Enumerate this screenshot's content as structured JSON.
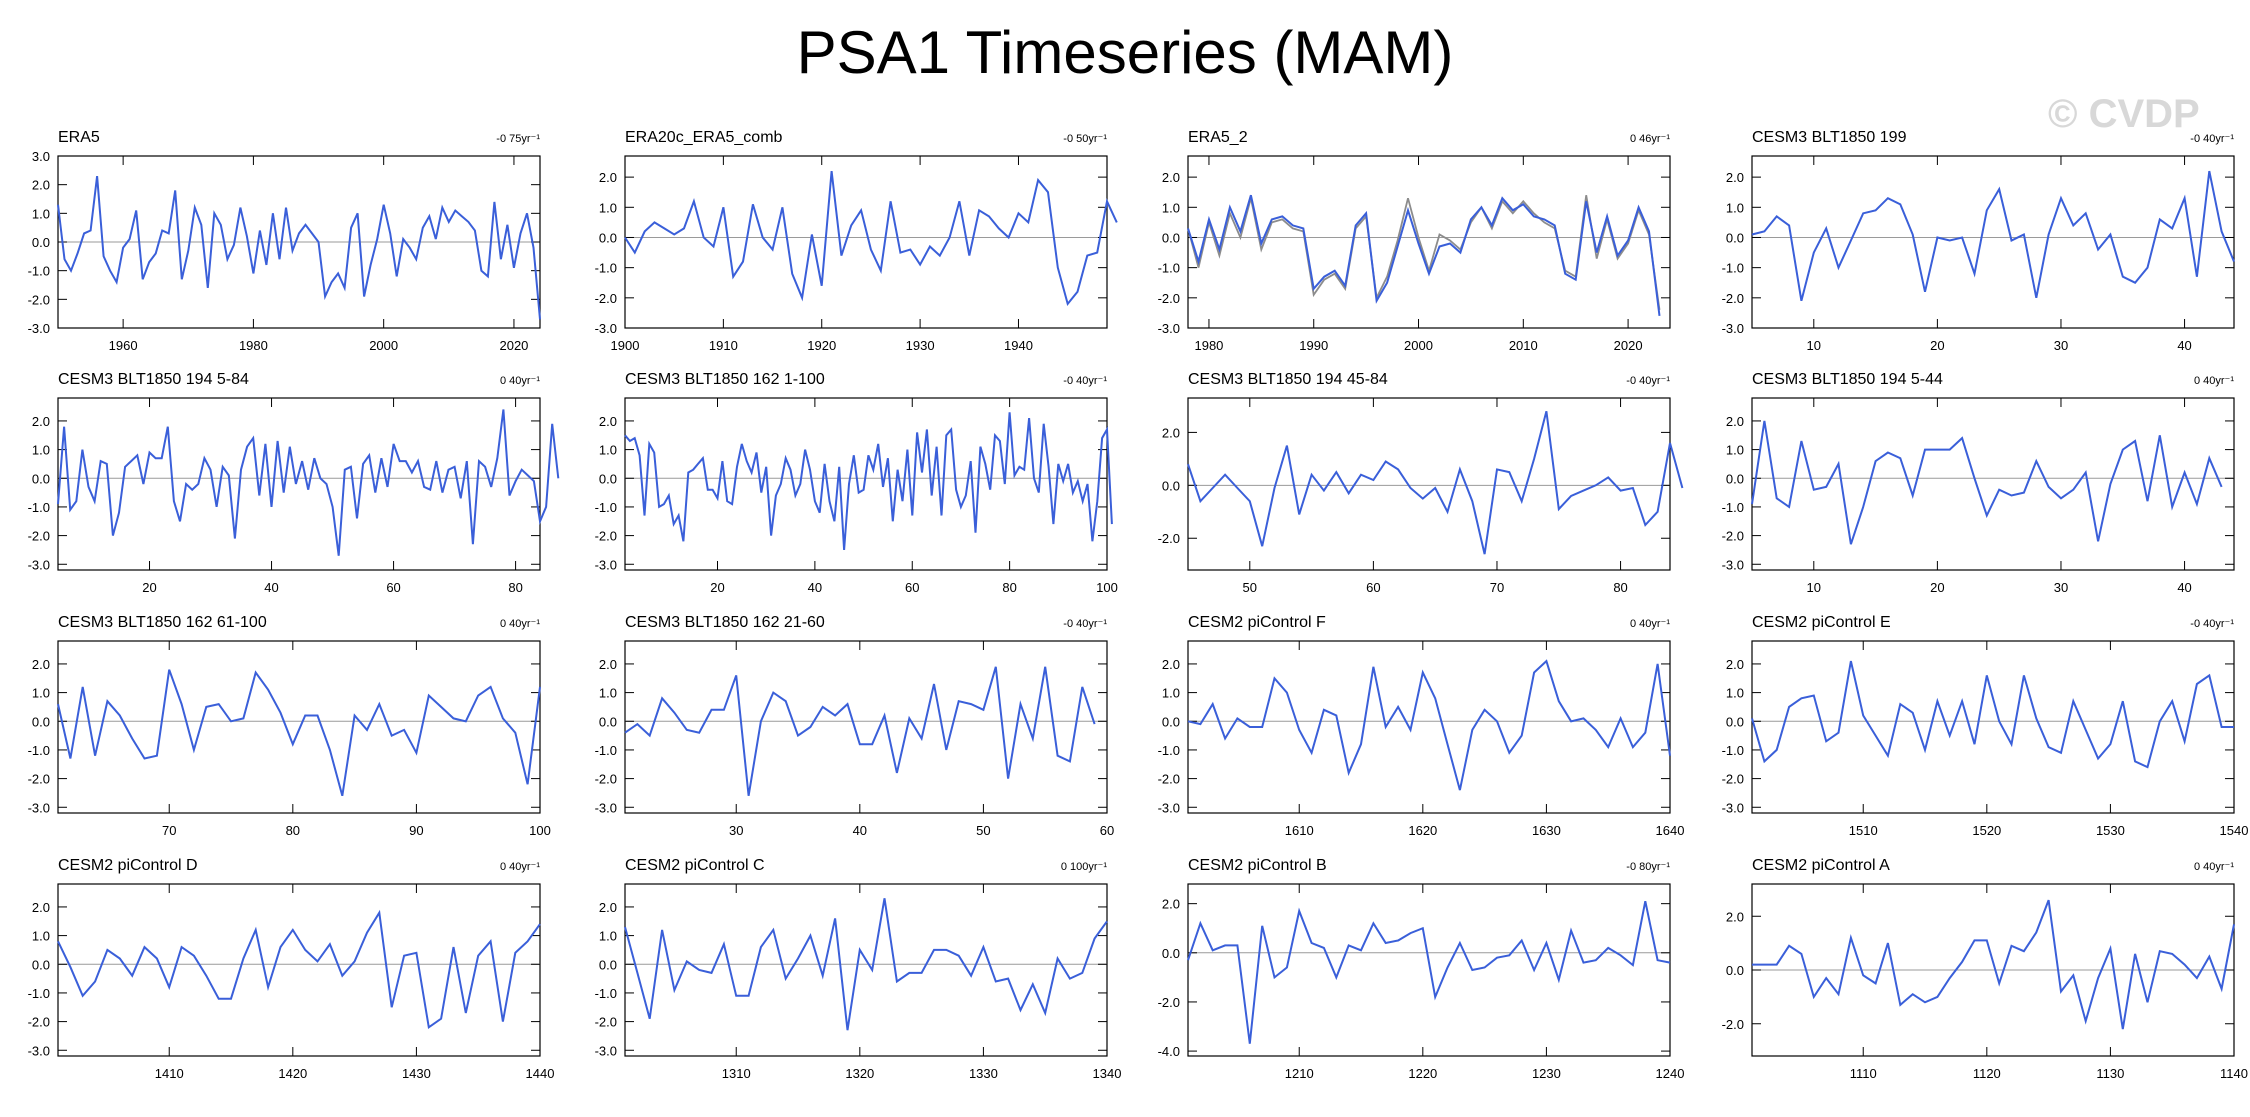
{
  "title": "PSA1 Timeseries (MAM)",
  "watermark": "© CVDP",
  "colors": {
    "series": "#3a5fd9",
    "obs_overlay": "#8c8c8c",
    "zero_line": "#9a9a9a",
    "frame": "#000000"
  },
  "chart_data": [
    {
      "type": "line",
      "title": "ERA5",
      "trend": "-0 75yr⁻¹",
      "xlim": [
        1950,
        2024
      ],
      "ylim": [
        -3,
        3
      ],
      "xticks": [
        1960,
        1980,
        2000,
        2020
      ],
      "yticks": [
        -3.0,
        -2.0,
        -1.0,
        0.0,
        1.0,
        2.0,
        3.0
      ],
      "x_start": 1950,
      "values": [
        1.3,
        -0.6,
        -1.0,
        -0.4,
        0.3,
        0.4,
        2.3,
        -0.5,
        -1.0,
        -1.4,
        -0.2,
        0.1,
        1.1,
        -1.3,
        -0.7,
        -0.4,
        0.4,
        0.3,
        1.8,
        -1.3,
        -0.3,
        1.2,
        0.6,
        -1.6,
        1.0,
        0.6,
        -0.6,
        -0.1,
        1.2,
        0.2,
        -1.1,
        0.4,
        -0.8,
        1.0,
        -0.6,
        1.2,
        -0.3,
        0.3,
        0.6,
        0.3,
        0.0,
        -1.9,
        -1.4,
        -1.1,
        -1.6,
        0.5,
        1.0,
        -1.9,
        -0.8,
        0.1,
        1.3,
        0.3,
        -1.2,
        0.1,
        -0.2,
        -0.6,
        0.5,
        0.9,
        0.1,
        1.2,
        0.7,
        1.1,
        0.9,
        0.7,
        0.4,
        -1.0,
        -1.2,
        1.4,
        -0.6,
        0.6,
        -0.9,
        0.3,
        1.0,
        -0.2,
        -2.7
      ]
    },
    {
      "type": "line",
      "title": "ERA20c_ERA5_comb",
      "trend": "-0 50yr⁻¹",
      "xlim": [
        1900,
        1949
      ],
      "ylim": [
        -3,
        2.7
      ],
      "xticks": [
        1900,
        1910,
        1920,
        1930,
        1940
      ],
      "yticks": [
        -3.0,
        -2.0,
        -1.0,
        0.0,
        1.0,
        2.0
      ],
      "x_start": 1900,
      "values": [
        0.0,
        -0.5,
        0.2,
        0.5,
        0.3,
        0.1,
        0.3,
        1.2,
        0.0,
        -0.3,
        1.0,
        -1.3,
        -0.8,
        1.1,
        0.0,
        -0.4,
        1.0,
        -1.2,
        -2.0,
        0.1,
        -1.6,
        2.2,
        -0.6,
        0.4,
        0.9,
        -0.4,
        -1.1,
        1.2,
        -0.5,
        -0.4,
        -0.9,
        -0.3,
        -0.6,
        0.0,
        1.2,
        -0.6,
        0.9,
        0.7,
        0.3,
        0.0,
        0.8,
        0.5,
        1.9,
        1.5,
        -1.0,
        -2.2,
        -1.8,
        -0.6,
        -0.5,
        1.2,
        0.5
      ]
    },
    {
      "type": "line",
      "title": "ERA5_2",
      "trend": "0 46yr⁻¹",
      "xlim": [
        1978,
        2024
      ],
      "ylim": [
        -3,
        2.7
      ],
      "xticks": [
        1980,
        1990,
        2000,
        2010,
        2020
      ],
      "yticks": [
        -3.0,
        -2.0,
        -1.0,
        0.0,
        1.0,
        2.0
      ],
      "x_start": 1978,
      "values": [
        0.3,
        -0.8,
        0.6,
        -0.4,
        1.0,
        0.2,
        1.4,
        -0.2,
        0.6,
        0.7,
        0.4,
        0.3,
        -1.7,
        -1.3,
        -1.1,
        -1.6,
        0.4,
        0.8,
        -2.1,
        -1.5,
        -0.3,
        0.9,
        -0.2,
        -1.2,
        -0.3,
        -0.2,
        -0.5,
        0.6,
        1.0,
        0.4,
        1.3,
        0.9,
        1.1,
        0.7,
        0.6,
        0.4,
        -1.2,
        -1.4,
        1.2,
        -0.5,
        0.7,
        -0.6,
        -0.1,
        1.0,
        0.2,
        -2.6
      ],
      "overlay": [
        0.3,
        -1.0,
        0.5,
        -0.6,
        0.8,
        0.0,
        1.3,
        -0.4,
        0.5,
        0.6,
        0.3,
        0.2,
        -1.9,
        -1.4,
        -1.2,
        -1.7,
        0.3,
        0.7,
        -2.0,
        -1.3,
        -0.1,
        1.3,
        0.0,
        -1.1,
        0.1,
        -0.1,
        -0.4,
        0.5,
        1.0,
        0.3,
        1.2,
        0.8,
        1.2,
        0.8,
        0.5,
        0.3,
        -1.1,
        -1.3,
        1.4,
        -0.7,
        0.6,
        -0.7,
        -0.2,
        0.9,
        0.1,
        -2.4
      ]
    },
    {
      "type": "line",
      "title": "CESM3 BLT1850 199",
      "trend": "-0 40yr⁻¹",
      "xlim": [
        5,
        44
      ],
      "ylim": [
        -3,
        2.7
      ],
      "xticks": [
        10,
        20,
        30,
        40
      ],
      "yticks": [
        -3.0,
        -2.0,
        -1.0,
        0.0,
        1.0,
        2.0
      ],
      "x_start": 5,
      "values": [
        0.1,
        0.2,
        0.7,
        0.4,
        -2.1,
        -0.5,
        0.3,
        -1.0,
        -0.1,
        0.8,
        0.9,
        1.3,
        1.1,
        0.1,
        -1.8,
        0.0,
        -0.1,
        0.0,
        -1.2,
        0.9,
        1.6,
        -0.1,
        0.1,
        -2.0,
        0.1,
        1.3,
        0.4,
        0.8,
        -0.4,
        0.1,
        -1.3,
        -1.5,
        -1.0,
        0.6,
        0.3,
        1.3,
        -1.3,
        2.2,
        0.2,
        -0.8
      ]
    },
    {
      "type": "line",
      "title": "CESM3 BLT1850 194 5-84",
      "trend": "0 40yr⁻¹",
      "xlim": [
        5,
        84
      ],
      "ylim": [
        -3.2,
        2.8
      ],
      "xticks": [
        20,
        40,
        60,
        80
      ],
      "yticks": [
        -3.0,
        -2.0,
        -1.0,
        0.0,
        1.0,
        2.0
      ],
      "x_start": 5,
      "values": [
        -0.9,
        1.8,
        -1.1,
        -0.8,
        1.0,
        -0.3,
        -0.8,
        0.6,
        0.5,
        -2.0,
        -1.2,
        0.4,
        0.6,
        0.8,
        -0.2,
        0.9,
        0.7,
        0.7,
        1.8,
        -0.8,
        -1.5,
        -0.2,
        -0.4,
        -0.2,
        0.7,
        0.3,
        -1.0,
        0.4,
        0.1,
        -2.1,
        0.3,
        1.1,
        1.4,
        -0.6,
        1.2,
        -1.0,
        1.3,
        -0.5,
        1.1,
        -0.2,
        0.6,
        -0.4,
        0.7,
        0.0,
        -0.2,
        -1.0,
        -2.7,
        0.3,
        0.4,
        -1.4,
        0.5,
        0.8,
        -0.5,
        0.7,
        -0.3,
        1.2,
        0.6,
        0.6,
        0.2,
        0.6,
        -0.3,
        -0.4,
        0.6,
        -0.5,
        0.3,
        0.4,
        -0.7,
        0.6,
        -2.3,
        0.6,
        0.4,
        -0.3,
        0.7,
        2.4,
        -0.6,
        -0.1,
        0.3,
        0.1,
        -0.1,
        -1.5,
        -1.0,
        1.9,
        0.0
      ]
    },
    {
      "type": "line",
      "title": "CESM3 BLT1850 162 1-100",
      "trend": "-0 40yr⁻¹",
      "xlim": [
        1,
        100
      ],
      "ylim": [
        -3.2,
        2.8
      ],
      "xticks": [
        20,
        40,
        60,
        80,
        100
      ],
      "yticks": [
        -3.0,
        -2.0,
        -1.0,
        0.0,
        1.0,
        2.0
      ],
      "x_start": 1,
      "values": [
        1.5,
        1.3,
        1.4,
        0.8,
        -1.3,
        1.2,
        0.9,
        -1.0,
        -0.9,
        -0.6,
        -1.6,
        -1.3,
        -2.2,
        0.2,
        0.3,
        0.5,
        0.7,
        -0.4,
        -0.4,
        -0.7,
        0.6,
        -0.8,
        -0.9,
        0.4,
        1.2,
        0.6,
        0.2,
        0.9,
        -0.5,
        0.4,
        -2.0,
        -0.6,
        -0.2,
        0.7,
        0.3,
        -0.6,
        -0.2,
        1.0,
        0.3,
        -0.8,
        -1.2,
        0.5,
        -0.8,
        -1.5,
        0.4,
        -2.5,
        -0.2,
        0.8,
        -0.5,
        -0.4,
        0.8,
        0.3,
        1.2,
        -0.3,
        0.7,
        -1.5,
        0.3,
        -0.8,
        1.0,
        -1.3,
        1.6,
        0.2,
        1.7,
        -0.6,
        1.1,
        -1.3,
        1.5,
        1.7,
        -0.4,
        -1.0,
        -0.6,
        0.6,
        -1.9,
        1.1,
        0.5,
        -0.4,
        1.5,
        1.3,
        -0.2,
        2.3,
        0.1,
        0.4,
        0.3,
        2.1,
        0.0,
        -0.5,
        1.9,
        0.4,
        -1.6,
        0.5,
        -0.1,
        0.5,
        -0.5,
        -0.1,
        -0.8,
        -0.2,
        -2.2,
        -0.8,
        1.4,
        1.7,
        -1.6
      ]
    },
    {
      "type": "line",
      "title": "CESM3 BLT1850 194 45-84",
      "trend": "-0 40yr⁻¹",
      "xlim": [
        45,
        84
      ],
      "ylim": [
        -3.2,
        3.3
      ],
      "xticks": [
        50,
        60,
        70,
        80
      ],
      "yticks": [
        -2.0,
        0.0,
        2.0
      ],
      "x_start": 45,
      "values": [
        0.8,
        -0.6,
        -0.1,
        0.4,
        -0.1,
        -0.6,
        -2.3,
        -0.1,
        1.5,
        -1.1,
        0.4,
        -0.2,
        0.5,
        -0.3,
        0.4,
        0.2,
        0.9,
        0.6,
        -0.1,
        -0.5,
        -0.1,
        -1.0,
        0.6,
        -0.6,
        -2.6,
        0.6,
        0.5,
        -0.6,
        1.0,
        2.8,
        -0.9,
        -0.4,
        -0.2,
        0.0,
        0.3,
        -0.2,
        -0.1,
        -1.5,
        -1.0,
        1.6,
        -0.1
      ]
    },
    {
      "type": "line",
      "title": "CESM3 BLT1850 194 5-44",
      "trend": "0 40yr⁻¹",
      "xlim": [
        5,
        44
      ],
      "ylim": [
        -3.2,
        2.8
      ],
      "xticks": [
        10,
        20,
        30,
        40
      ],
      "yticks": [
        -3.0,
        -2.0,
        -1.0,
        0.0,
        1.0,
        2.0
      ],
      "x_start": 5,
      "values": [
        -0.9,
        2.0,
        -0.7,
        -1.0,
        1.3,
        -0.4,
        -0.3,
        0.5,
        -2.3,
        -1.0,
        0.6,
        0.9,
        0.7,
        -0.6,
        1.0,
        1.0,
        1.0,
        1.4,
        0.0,
        -1.3,
        -0.4,
        -0.6,
        -0.5,
        0.6,
        -0.3,
        -0.7,
        -0.4,
        0.2,
        -2.2,
        -0.2,
        1.0,
        1.3,
        -0.8,
        1.5,
        -1.0,
        0.2,
        -0.9,
        0.7,
        -0.3
      ]
    },
    {
      "type": "line",
      "title": "CESM3 BLT1850 162 61-100",
      "trend": "0 40yr⁻¹",
      "xlim": [
        61,
        100
      ],
      "ylim": [
        -3.2,
        2.8
      ],
      "xticks": [
        70,
        80,
        90,
        100
      ],
      "yticks": [
        -3.0,
        -2.0,
        -1.0,
        0.0,
        1.0,
        2.0
      ],
      "x_start": 61,
      "values": [
        0.6,
        -1.3,
        1.2,
        -1.2,
        0.7,
        0.2,
        -0.6,
        -1.3,
        -1.2,
        1.8,
        0.6,
        -1.0,
        0.5,
        0.6,
        0.0,
        0.1,
        1.7,
        1.1,
        0.3,
        -0.8,
        0.2,
        0.2,
        -1.0,
        -2.6,
        0.2,
        -0.3,
        0.6,
        -0.5,
        -0.3,
        -1.1,
        0.9,
        0.5,
        0.1,
        0.0,
        0.9,
        1.2,
        0.1,
        -0.4,
        -2.2,
        1.2
      ]
    },
    {
      "type": "line",
      "title": "CESM3 BLT1850 162 21-60",
      "trend": "-0 40yr⁻¹",
      "xlim": [
        21,
        60
      ],
      "ylim": [
        -3.2,
        2.8
      ],
      "xticks": [
        30,
        40,
        50,
        60
      ],
      "yticks": [
        -3.0,
        -2.0,
        -1.0,
        0.0,
        1.0,
        2.0
      ],
      "x_start": 21,
      "values": [
        -0.4,
        -0.1,
        -0.5,
        0.8,
        0.3,
        -0.3,
        -0.4,
        0.4,
        0.4,
        1.6,
        -2.6,
        0.0,
        1.0,
        0.7,
        -0.5,
        -0.2,
        0.5,
        0.2,
        0.6,
        -0.8,
        -0.8,
        0.2,
        -1.8,
        0.1,
        -0.6,
        1.3,
        -1.0,
        0.7,
        0.6,
        0.4,
        1.9,
        -2.0,
        0.6,
        -0.6,
        1.9,
        -1.2,
        -1.4,
        1.2,
        -0.1
      ]
    },
    {
      "type": "line",
      "title": "CESM2 piControl F",
      "trend": "0 40yr⁻¹",
      "xlim": [
        1601,
        1640
      ],
      "ylim": [
        -3.2,
        2.8
      ],
      "xticks": [
        1610,
        1620,
        1630,
        1640
      ],
      "yticks": [
        -3.0,
        -2.0,
        -1.0,
        0.0,
        1.0,
        2.0
      ],
      "x_start": 1601,
      "values": [
        0.0,
        -0.1,
        0.6,
        -0.6,
        0.1,
        -0.2,
        -0.2,
        1.5,
        1.0,
        -0.3,
        -1.1,
        0.4,
        0.2,
        -1.8,
        -0.8,
        1.9,
        -0.2,
        0.5,
        -0.3,
        1.7,
        0.8,
        -0.8,
        -2.4,
        -0.3,
        0.4,
        0.0,
        -1.1,
        -0.5,
        1.7,
        2.1,
        0.7,
        0.0,
        0.1,
        -0.3,
        -0.9,
        0.1,
        -0.9,
        -0.4,
        2.0,
        -1.2
      ]
    },
    {
      "type": "line",
      "title": "CESM2 piControl E",
      "trend": "-0 40yr⁻¹",
      "xlim": [
        1501,
        1540
      ],
      "ylim": [
        -3.2,
        2.8
      ],
      "xticks": [
        1510,
        1520,
        1530,
        1540
      ],
      "yticks": [
        -3.0,
        -2.0,
        -1.0,
        0.0,
        1.0,
        2.0
      ],
      "x_start": 1501,
      "values": [
        0.1,
        -1.4,
        -1.0,
        0.5,
        0.8,
        0.9,
        -0.7,
        -0.4,
        2.1,
        0.2,
        -0.5,
        -1.2,
        0.6,
        0.3,
        -1.0,
        0.7,
        -0.5,
        0.7,
        -0.8,
        1.6,
        0.0,
        -0.8,
        1.6,
        0.1,
        -0.9,
        -1.1,
        0.7,
        -0.3,
        -1.3,
        -0.8,
        0.7,
        -1.4,
        -1.6,
        0.0,
        0.7,
        -0.7,
        1.3,
        1.6,
        -0.2,
        -0.2
      ]
    },
    {
      "type": "line",
      "title": "CESM2 piControl D",
      "trend": "0 40yr⁻¹",
      "xlim": [
        1401,
        1440
      ],
      "ylim": [
        -3.2,
        2.8
      ],
      "xticks": [
        1410,
        1420,
        1430,
        1440
      ],
      "yticks": [
        -3.0,
        -2.0,
        -1.0,
        0.0,
        1.0,
        2.0
      ],
      "x_start": 1401,
      "values": [
        0.8,
        -0.1,
        -1.1,
        -0.6,
        0.5,
        0.2,
        -0.4,
        0.6,
        0.2,
        -0.8,
        0.6,
        0.3,
        -0.4,
        -1.2,
        -1.2,
        0.2,
        1.2,
        -0.8,
        0.6,
        1.2,
        0.5,
        0.1,
        0.7,
        -0.4,
        0.1,
        1.1,
        1.8,
        -1.5,
        0.3,
        0.4,
        -2.2,
        -1.9,
        0.6,
        -1.7,
        0.3,
        0.8,
        -2.0,
        0.4,
        0.8,
        1.4
      ]
    },
    {
      "type": "line",
      "title": "CESM2 piControl C",
      "trend": "0 100yr⁻¹",
      "xlim": [
        1301,
        1340
      ],
      "ylim": [
        -3.2,
        2.8
      ],
      "xticks": [
        1310,
        1320,
        1330,
        1340
      ],
      "yticks": [
        -3.0,
        -2.0,
        -1.0,
        0.0,
        1.0,
        2.0
      ],
      "x_start": 1301,
      "values": [
        1.3,
        -0.3,
        -1.9,
        1.2,
        -0.9,
        0.1,
        -0.2,
        -0.3,
        0.7,
        -1.1,
        -1.1,
        0.6,
        1.2,
        -0.5,
        0.2,
        1.0,
        -0.4,
        1.6,
        -2.3,
        0.5,
        -0.2,
        2.3,
        -0.6,
        -0.3,
        -0.3,
        0.5,
        0.5,
        0.3,
        -0.4,
        0.6,
        -0.6,
        -0.5,
        -1.6,
        -0.7,
        -1.7,
        0.2,
        -0.5,
        -0.3,
        0.9,
        1.5
      ]
    },
    {
      "type": "line",
      "title": "CESM2 piControl B",
      "trend": "-0 80yr⁻¹",
      "xlim": [
        1201,
        1240
      ],
      "ylim": [
        -4.2,
        2.8
      ],
      "xticks": [
        1210,
        1220,
        1230,
        1240
      ],
      "yticks": [
        -4.0,
        -2.0,
        0.0,
        2.0
      ],
      "x_start": 1201,
      "values": [
        -0.3,
        1.2,
        0.1,
        0.3,
        0.3,
        -3.7,
        1.1,
        -1.0,
        -0.6,
        1.7,
        0.4,
        0.2,
        -1.0,
        0.3,
        0.1,
        1.2,
        0.4,
        0.5,
        0.8,
        1.0,
        -1.8,
        -0.6,
        0.4,
        -0.7,
        -0.6,
        -0.2,
        -0.1,
        0.5,
        -0.7,
        0.4,
        -1.1,
        0.9,
        -0.4,
        -0.3,
        0.2,
        -0.1,
        -0.5,
        2.1,
        -0.3,
        -0.4
      ]
    },
    {
      "type": "line",
      "title": "CESM2 piControl A",
      "trend": "0 40yr⁻¹",
      "xlim": [
        1101,
        1140
      ],
      "ylim": [
        -3.2,
        3.2
      ],
      "xticks": [
        1110,
        1120,
        1130,
        1140
      ],
      "yticks": [
        -2.0,
        0.0,
        2.0
      ],
      "x_start": 1101,
      "values": [
        0.2,
        0.2,
        0.2,
        0.9,
        0.6,
        -1.0,
        -0.3,
        -0.9,
        1.2,
        -0.2,
        -0.5,
        1.0,
        -1.3,
        -0.9,
        -1.2,
        -1.0,
        -0.3,
        0.3,
        1.1,
        1.1,
        -0.5,
        0.9,
        0.7,
        1.4,
        2.6,
        -0.8,
        -0.2,
        -1.9,
        -0.3,
        0.8,
        -2.2,
        0.6,
        -1.2,
        0.7,
        0.6,
        0.2,
        -0.3,
        0.5,
        -0.7,
        1.7
      ]
    }
  ]
}
